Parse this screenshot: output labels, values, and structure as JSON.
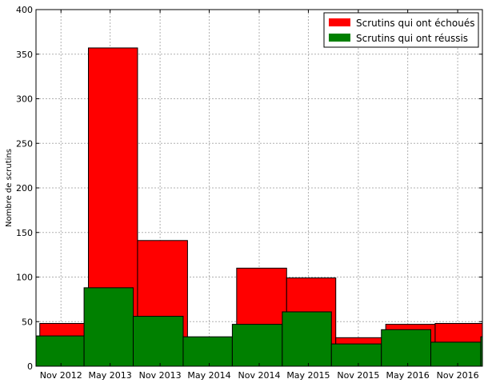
{
  "chart_data": {
    "type": "bar",
    "title": "",
    "xlabel": "",
    "ylabel": "Nombre de scrutins",
    "ylim": [
      0,
      400
    ],
    "yticks": [
      0,
      50,
      100,
      150,
      200,
      250,
      300,
      350,
      400
    ],
    "xlim": [
      "2012-08-01",
      "2017-01-31"
    ],
    "xticks": [
      {
        "date": "2012-11-01",
        "label": "Nov 2012"
      },
      {
        "date": "2013-05-01",
        "label": "May 2013"
      },
      {
        "date": "2013-11-01",
        "label": "Nov 2013"
      },
      {
        "date": "2014-05-01",
        "label": "May 2014"
      },
      {
        "date": "2014-11-01",
        "label": "Nov 2014"
      },
      {
        "date": "2015-05-01",
        "label": "May 2015"
      },
      {
        "date": "2015-11-01",
        "label": "Nov 2015"
      },
      {
        "date": "2016-05-01",
        "label": "May 2016"
      },
      {
        "date": "2016-11-01",
        "label": "Nov 2016"
      }
    ],
    "grid": true,
    "legend_position": "top-right",
    "series": [
      {
        "name": "Scrutins qui ont échoués",
        "color": "#ff0000",
        "bars": [
          {
            "start": "2012-08-15",
            "end": "2013-02-10",
            "value": 48
          },
          {
            "start": "2013-02-10",
            "end": "2013-08-10",
            "value": 357
          },
          {
            "start": "2013-08-10",
            "end": "2014-02-10",
            "value": 141
          },
          {
            "start": "2014-02-10",
            "end": "2014-08-10",
            "value": 30
          },
          {
            "start": "2014-08-10",
            "end": "2015-02-10",
            "value": 110
          },
          {
            "start": "2015-02-10",
            "end": "2015-08-10",
            "value": 99
          },
          {
            "start": "2015-08-10",
            "end": "2016-02-10",
            "value": 32
          },
          {
            "start": "2016-02-10",
            "end": "2016-08-10",
            "value": 47
          },
          {
            "start": "2016-08-10",
            "end": "2017-02-10",
            "value": 48
          }
        ]
      },
      {
        "name": "Scrutins qui ont réussis",
        "color": "#008000",
        "bars": [
          {
            "start": "2012-08-01",
            "end": "2013-01-25",
            "value": 34
          },
          {
            "start": "2013-01-25",
            "end": "2013-07-25",
            "value": 88
          },
          {
            "start": "2013-07-25",
            "end": "2014-01-25",
            "value": 56
          },
          {
            "start": "2014-01-25",
            "end": "2014-07-25",
            "value": 33
          },
          {
            "start": "2014-07-25",
            "end": "2015-01-25",
            "value": 47
          },
          {
            "start": "2015-01-25",
            "end": "2015-07-25",
            "value": 61
          },
          {
            "start": "2015-07-25",
            "end": "2016-01-25",
            "value": 25
          },
          {
            "start": "2016-01-25",
            "end": "2016-07-25",
            "value": 41
          },
          {
            "start": "2016-07-25",
            "end": "2017-01-25",
            "value": 27
          },
          {
            "start": "2017-01-25",
            "end": "2017-07-25",
            "value": 33
          }
        ]
      }
    ]
  }
}
